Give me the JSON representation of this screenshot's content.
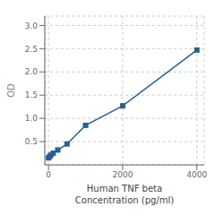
{
  "chart_data": {
    "type": "line",
    "x": [
      0,
      31.25,
      62.5,
      125,
      250,
      500,
      1000,
      2000,
      4000
    ],
    "values": [
      0.15,
      0.18,
      0.21,
      0.25,
      0.32,
      0.45,
      0.85,
      1.27,
      2.47
    ],
    "color": "#2a6090",
    "marker": "square",
    "xlabel": [
      "Human TNF beta",
      "Concentration (pg/ml)"
    ],
    "ylabel": "OD",
    "xlim": [
      -100,
      4200
    ],
    "ylim": [
      0,
      3.2
    ],
    "xticks": [
      0,
      2000,
      4000
    ],
    "yticks": [
      0.5,
      {
        "value": 1.0,
        "label": "1.0"
      },
      1.5,
      {
        "value": 2.0,
        "label": "2.0"
      },
      2.5,
      {
        "value": 3.0,
        "label": "3.0"
      }
    ],
    "grid": true
  }
}
